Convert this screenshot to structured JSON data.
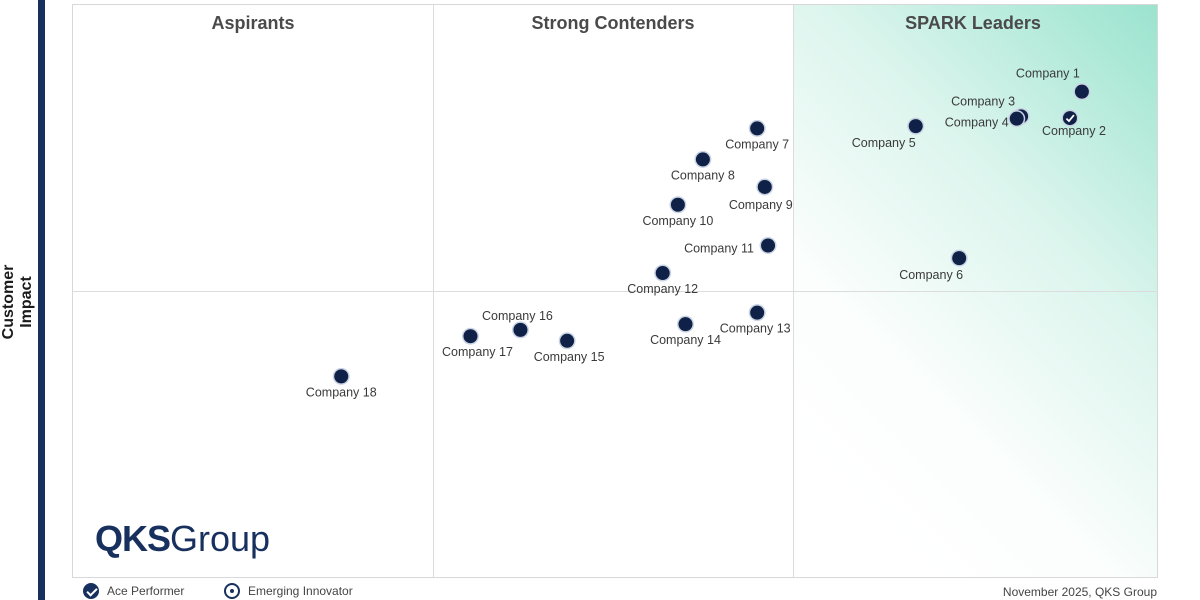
{
  "chart_data": {
    "type": "scatter",
    "title": "",
    "xlabel": "",
    "ylabel": "Customer Impact",
    "quadrants": [
      "Aspirants",
      "Strong Contenders",
      "SPARK Leaders"
    ],
    "grid": true,
    "colors": {
      "point": "#0f2147",
      "leader_zone": "#7fdcc0",
      "logo": "#17305e"
    },
    "points": [
      {
        "name": "Company 1",
        "x": 92.9,
        "y": 84.9,
        "marker": "dot"
      },
      {
        "name": "Company 2",
        "x": 91.8,
        "y": 80.3,
        "marker": "ace"
      },
      {
        "name": "Company 3",
        "x": 87.3,
        "y": 80.6,
        "marker": "dot"
      },
      {
        "name": "Company 4",
        "x": 86.9,
        "y": 80.2,
        "marker": "dot"
      },
      {
        "name": "Company 5",
        "x": 77.6,
        "y": 78.9,
        "marker": "dot"
      },
      {
        "name": "Company 6",
        "x": 81.6,
        "y": 55.9,
        "marker": "dot"
      },
      {
        "name": "Company 7",
        "x": 63.0,
        "y": 78.5,
        "marker": "dot"
      },
      {
        "name": "Company 8",
        "x": 58.0,
        "y": 73.1,
        "marker": "dot"
      },
      {
        "name": "Company 9",
        "x": 63.7,
        "y": 68.3,
        "marker": "dot"
      },
      {
        "name": "Company 10",
        "x": 55.7,
        "y": 65.2,
        "marker": "dot"
      },
      {
        "name": "Company 11",
        "x": 64.0,
        "y": 58.1,
        "marker": "dot"
      },
      {
        "name": "Company 12",
        "x": 54.3,
        "y": 53.3,
        "marker": "dot"
      },
      {
        "name": "Company 13",
        "x": 63.0,
        "y": 46.4,
        "marker": "dot"
      },
      {
        "name": "Company 14",
        "x": 56.4,
        "y": 44.4,
        "marker": "dot"
      },
      {
        "name": "Company 15",
        "x": 45.5,
        "y": 41.5,
        "marker": "dot"
      },
      {
        "name": "Company 16",
        "x": 41.2,
        "y": 43.4,
        "marker": "dot"
      },
      {
        "name": "Company 17",
        "x": 36.6,
        "y": 42.3,
        "marker": "dot"
      },
      {
        "name": "Company 18",
        "x": 24.7,
        "y": 35.3,
        "marker": "dot"
      }
    ],
    "legend": [
      {
        "label": "Ace Performer",
        "icon": "ace-performer-icon"
      },
      {
        "label": "Emerging Innovator",
        "icon": "emerging-innovator-icon"
      }
    ]
  },
  "logo": {
    "bold": "QKS",
    "light": "Group"
  },
  "footer": {
    "note": "November 2025, QKS Group"
  }
}
